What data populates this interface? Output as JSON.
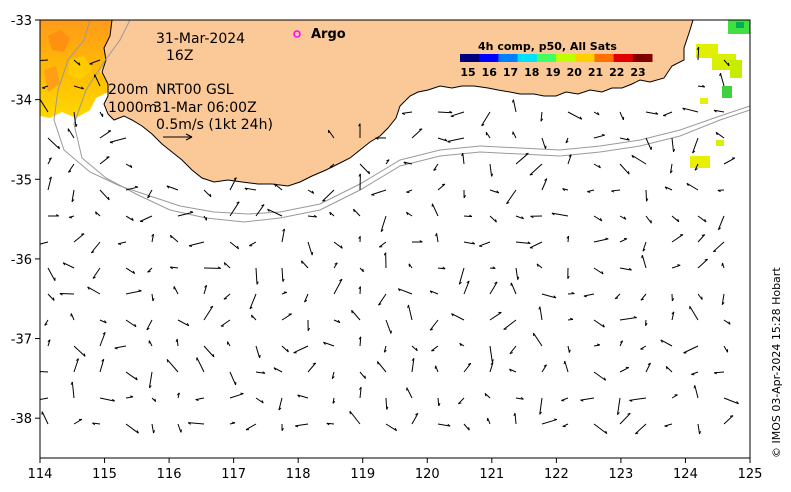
{
  "map": {
    "date_label": "31-Mar-2024",
    "hour_label": "16Z",
    "argo_label": "Argo",
    "depth_contour_1": "200m",
    "depth_contour_2": "1000m",
    "product_label": "NRT00 GSL",
    "product_time": "31-Mar 06:00Z",
    "scale_label": "0.5m/s (1kt 24h)",
    "credit": "© IMOS 03-Apr-2024 15:28 Hobart",
    "lon_range": [
      114,
      125
    ],
    "lat_range": [
      -38.5,
      -33
    ],
    "lon_ticks": [
      "114",
      "115",
      "116",
      "117",
      "118",
      "119",
      "120",
      "121",
      "122",
      "123",
      "124",
      "125"
    ],
    "lat_ticks": [
      "-33",
      "-34",
      "-35",
      "-36",
      "-37",
      "-38"
    ]
  },
  "legend": {
    "title": "4h comp, p50, All Sats",
    "ticks": [
      "15",
      "16",
      "17",
      "18",
      "19",
      "20",
      "21",
      "22",
      "23"
    ],
    "colors": [
      "#00007f",
      "#0000ff",
      "#0080ff",
      "#00e0ff",
      "#40ff60",
      "#c0ff00",
      "#ffd000",
      "#ff7000",
      "#e00000",
      "#800000"
    ]
  },
  "colors": {
    "land": "#fbc898",
    "argo": "#ff00ff",
    "sst_warm": "#ff9a1a",
    "sst_mid": "#ffd400",
    "sst_cool": "#d8e800"
  }
}
